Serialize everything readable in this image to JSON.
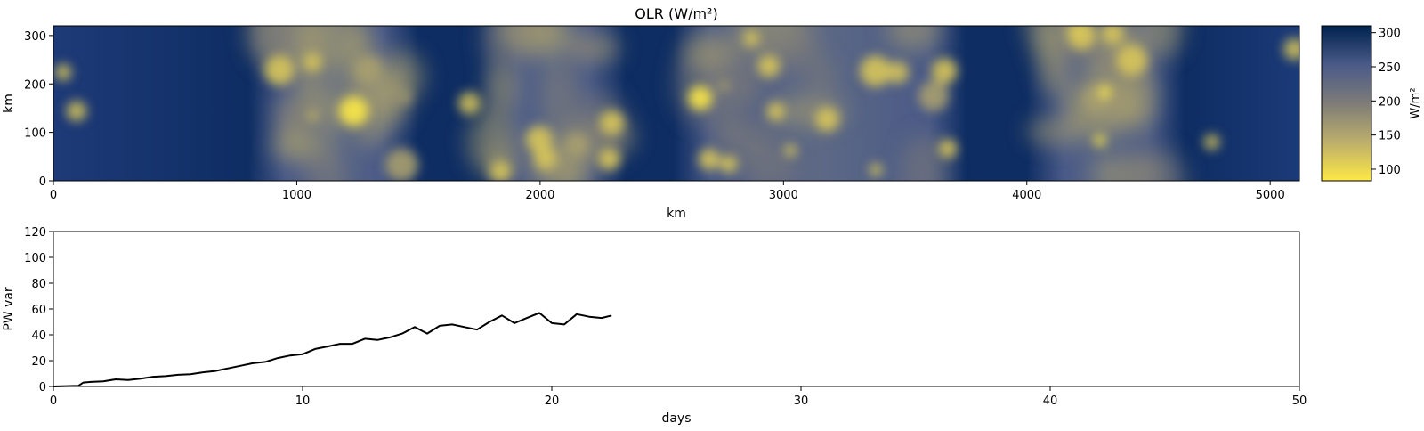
{
  "chart_data": [
    {
      "type": "heatmap",
      "title": "OLR (W/m²)",
      "xlabel": "km",
      "ylabel": "km",
      "xlim": [
        0,
        5120
      ],
      "ylim": [
        0,
        320
      ],
      "xticks": [
        "0",
        "1000",
        "2000",
        "3000",
        "4000",
        "5000"
      ],
      "yticks": [
        "0",
        "100",
        "200",
        "300"
      ],
      "colormap": "cividis",
      "colorbar": {
        "label": "W/m²",
        "range": [
          83,
          310
        ],
        "ticks": [
          "100",
          "150",
          "200",
          "250",
          "300"
        ],
        "colors": [
          "#FDE945",
          "#BCAE6B",
          "#7E7C78",
          "#4A5A88",
          "#00224E"
        ]
      },
      "convective_regions_km": [
        [
          850,
          1450
        ],
        [
          1800,
          2300
        ],
        [
          2600,
          3700
        ],
        [
          4050,
          4600
        ]
      ]
    },
    {
      "type": "line",
      "title": "",
      "xlabel": "days",
      "ylabel": "PW var",
      "xlim": [
        0,
        50
      ],
      "ylim": [
        0,
        120
      ],
      "xticks": [
        "0",
        "10",
        "20",
        "30",
        "40",
        "50"
      ],
      "yticks": [
        "0",
        "20",
        "40",
        "60",
        "80",
        "100",
        "120"
      ],
      "series": [
        {
          "color": "#000000",
          "x": [
            0,
            1,
            1.2,
            1.5,
            2,
            2.5,
            3,
            3.5,
            4,
            4.5,
            5,
            5.5,
            6,
            6.5,
            7,
            7.5,
            8,
            8.5,
            9,
            9.5,
            10,
            10.5,
            11,
            11.5,
            12,
            12.5,
            13,
            13.5,
            14,
            14.5,
            15,
            15.5,
            16,
            16.5,
            17,
            17.5,
            18,
            18.5,
            19,
            19.5,
            20,
            20.5,
            21,
            21.5,
            22,
            22.4
          ],
          "y": [
            0,
            0.5,
            3,
            3.5,
            4,
            5.5,
            5,
            6,
            7.5,
            8,
            9,
            9.5,
            11,
            12,
            14,
            16,
            18,
            19,
            22,
            24,
            25,
            29,
            31,
            33,
            33,
            37,
            36,
            38,
            41,
            46,
            41,
            47,
            48,
            46,
            44,
            50,
            55,
            49,
            53,
            57,
            49,
            48,
            56,
            54,
            53,
            55
          ]
        }
      ]
    }
  ]
}
